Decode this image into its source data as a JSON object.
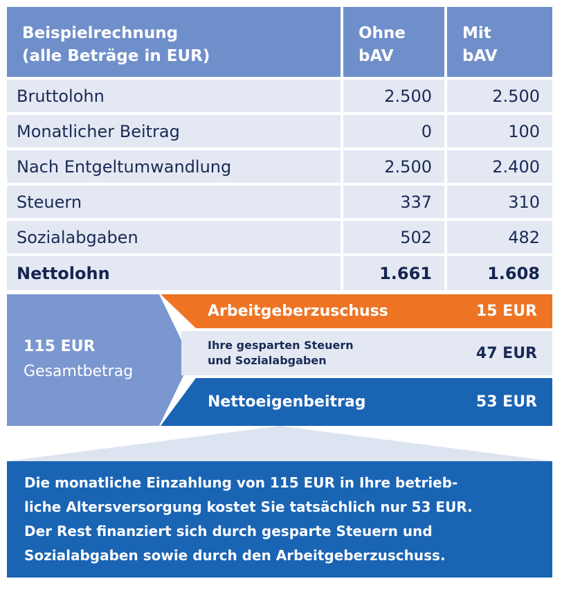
{
  "table": {
    "header": {
      "col1_lines": [
        "Beispielrechnung",
        "(alle Beträge in EUR)"
      ],
      "col2_lines": [
        "Ohne",
        "bAV"
      ],
      "col3_lines": [
        "Mit",
        "bAV"
      ]
    },
    "rows": [
      {
        "label": "Bruttolohn",
        "ohne": "2.500",
        "mit": "2.500"
      },
      {
        "label": "Monatlicher Beitrag",
        "ohne": "0",
        "mit": "100"
      },
      {
        "label": "Nach Entgeltumwandlung",
        "ohne": "2.500",
        "mit": "2.400"
      },
      {
        "label": "Steuern",
        "ohne": "337",
        "mit": "310"
      },
      {
        "label": "Sozialabgaben",
        "ohne": "502",
        "mit": "482"
      },
      {
        "label": "Nettolohn",
        "ohne": "1.661",
        "mit": "1.608"
      }
    ]
  },
  "summary": {
    "amount": "115 EUR",
    "label": "Gesamtbetrag"
  },
  "breakdown": {
    "employer": {
      "label": "Arbeitgeberzuschuss",
      "value": "15 EUR"
    },
    "savings": {
      "label_lines": [
        "Ihre gesparten Steuern",
        "und Sozialabgaben"
      ],
      "value": "47 EUR"
    },
    "net": {
      "label": "Nettoeigenbeitrag",
      "value": "53 EUR"
    }
  },
  "footer_lines": [
    "Die monatliche Einzahlung von 115 EUR in Ihre betrieb-",
    "liche Altersversorgung kostet Sie tatsächlich nur 53 EUR.",
    "Der Rest finanziert sich durch gesparte Steuern und",
    "Sozialabgaben sowie durch den Arbeitgeberzuschuss."
  ],
  "colors": {
    "header_blue": "#6f8fcb",
    "row_bg": "#e3e8f3",
    "accent_orange": "#ee7424",
    "dark_blue": "#1a64b4",
    "panel_blue": "#7b97cf"
  }
}
